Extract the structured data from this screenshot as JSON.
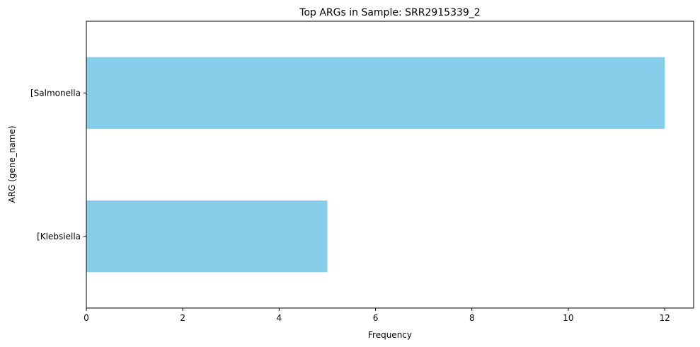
{
  "chart_data": {
    "type": "bar",
    "orientation": "horizontal",
    "title": "Top ARGs in Sample: SRR2915339_2",
    "xlabel": "Frequency",
    "ylabel": "ARG (gene_name)",
    "categories": [
      "[Klebsiella",
      "[Salmonella"
    ],
    "values": [
      5,
      12
    ],
    "xlim": [
      0,
      12.6
    ],
    "xticks": [
      0,
      2,
      4,
      6,
      8,
      10,
      12
    ],
    "grid": false,
    "legend": "none",
    "colors": {
      "bar": "#87ceeb",
      "axes": "#000000",
      "background": "#ffffff"
    }
  }
}
